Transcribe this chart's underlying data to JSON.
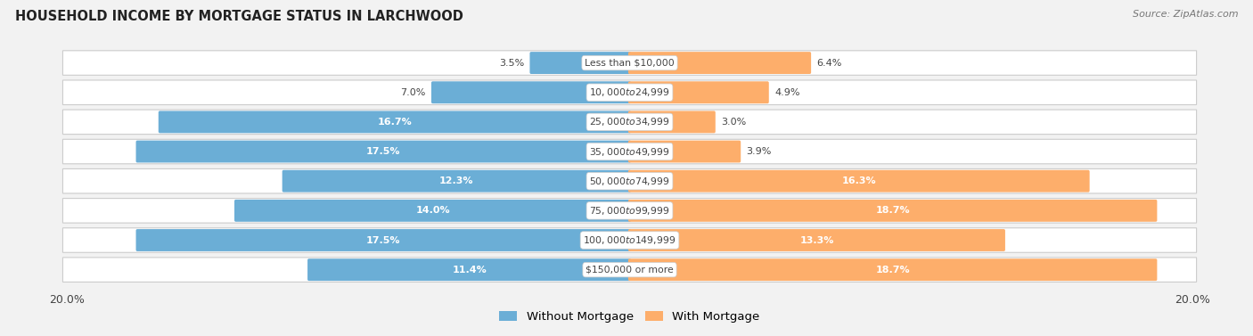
{
  "title": "HOUSEHOLD INCOME BY MORTGAGE STATUS IN LARCHWOOD",
  "source": "Source: ZipAtlas.com",
  "categories": [
    "Less than $10,000",
    "$10,000 to $24,999",
    "$25,000 to $34,999",
    "$35,000 to $49,999",
    "$50,000 to $74,999",
    "$75,000 to $99,999",
    "$100,000 to $149,999",
    "$150,000 or more"
  ],
  "without_mortgage": [
    3.5,
    7.0,
    16.7,
    17.5,
    12.3,
    14.0,
    17.5,
    11.4
  ],
  "with_mortgage": [
    6.4,
    4.9,
    3.0,
    3.9,
    16.3,
    18.7,
    13.3,
    18.7
  ],
  "color_without": "#6baed6",
  "color_with": "#fdae6b",
  "color_without_light": "#bdd7ee",
  "color_with_light": "#fdd0a2",
  "axis_max": 20.0,
  "bg_color": "#f2f2f2",
  "row_bg_color": "#e8e8e8",
  "row_border_color": "#cccccc",
  "label_text_color": "#444444",
  "white_label_color": "#ffffff",
  "legend_label_without": "Without Mortgage",
  "legend_label_with": "With Mortgage",
  "x_tick_label": "20.0%"
}
